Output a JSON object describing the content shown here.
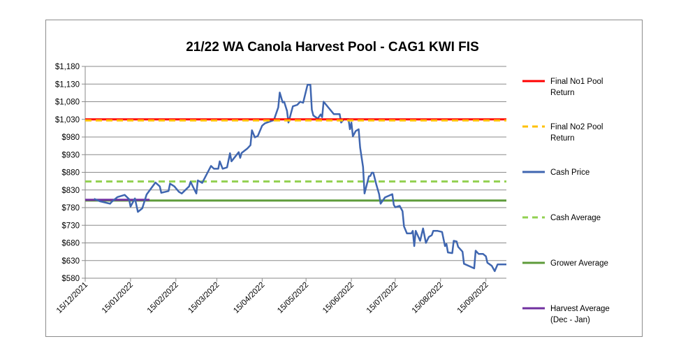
{
  "chart_data": {
    "type": "line",
    "title": "21/22 WA Canola Harvest Pool - CAG1 KWI FIS",
    "xlabel": "",
    "ylabel": "",
    "ylim": [
      580,
      1180
    ],
    "xlim": [
      "15/12/2021",
      "29/09/2022"
    ],
    "yticks": [
      "$580",
      "$630",
      "$680",
      "$730",
      "$780",
      "$830",
      "$880",
      "$930",
      "$980",
      "$1,030",
      "$1,080",
      "$1,130",
      "$1,180"
    ],
    "ytick_values": [
      580,
      630,
      680,
      730,
      780,
      830,
      880,
      930,
      980,
      1030,
      1080,
      1130,
      1180
    ],
    "xticks": [
      "15/12/2021",
      "15/01/2022",
      "15/02/2022",
      "15/03/2022",
      "15/04/2022",
      "15/05/2022",
      "15/06/2022",
      "15/07/2022",
      "15/08/2022",
      "15/09/2022"
    ],
    "grid": "horizontal",
    "legend_placement": "right",
    "series": [
      {
        "name": "Final No1 Pool Return",
        "color": "#FF0000",
        "style": "solid",
        "x": [
          "15/12/2021",
          "29/09/2022"
        ],
        "y": [
          1030,
          1030
        ]
      },
      {
        "name": "Final No2 Pool Return",
        "color": "#FFC000",
        "style": "dashed",
        "x": [
          "15/12/2021",
          "29/09/2022"
        ],
        "y": [
          1027,
          1027
        ]
      },
      {
        "name": "Cash Price",
        "color": "#3F66B0",
        "style": "solid",
        "x": [
          "21/12/2021",
          "25/12/2021",
          "01/01/2022",
          "02/01/2022",
          "06/01/2022",
          "11/01/2022",
          "14/01/2022",
          "15/01/2022",
          "18/01/2022",
          "20/01/2022",
          "23/01/2022",
          "26/01/2022",
          "01/02/2022",
          "04/02/2022",
          "05/02/2022",
          "10/02/2022",
          "11/02/2022",
          "14/02/2022",
          "17/02/2022",
          "19/02/2022",
          "24/02/2022",
          "25/02/2022",
          "01/03/2022",
          "02/03/2022",
          "05/03/2022",
          "11/03/2022",
          "13/03/2022",
          "16/03/2022",
          "17/03/2022",
          "19/03/2022",
          "22/03/2022",
          "24/03/2022",
          "25/03/2022",
          "30/03/2022",
          "31/03/2022",
          "01/04/2022",
          "05/04/2022",
          "07/04/2022",
          "08/04/2022",
          "10/04/2022",
          "12/04/2022",
          "15/04/2022",
          "17/04/2022",
          "23/04/2022",
          "26/04/2022",
          "27/04/2022",
          "29/04/2022",
          "30/04/2022",
          "02/05/2022",
          "03/05/2022",
          "06/05/2022",
          "09/05/2022",
          "11/05/2022",
          "13/05/2022",
          "16/05/2022",
          "18/05/2022",
          "19/05/2022",
          "20/05/2022",
          "23/05/2022",
          "25/05/2022",
          "26/05/2022",
          "27/05/2022",
          "03/06/2022",
          "07/06/2022",
          "08/06/2022",
          "10/06/2022",
          "13/06/2022",
          "14/06/2022",
          "15/06/2022",
          "16/06/2022",
          "18/06/2022",
          "20/06/2022",
          "21/06/2022",
          "23/06/2022",
          "24/06/2022",
          "27/06/2022",
          "28/06/2022",
          "29/06/2022",
          "30/06/2022",
          "02/07/2022",
          "04/07/2022",
          "05/07/2022",
          "08/07/2022",
          "13/07/2022",
          "14/07/2022",
          "15/07/2022",
          "18/07/2022",
          "20/07/2022",
          "21/07/2022",
          "23/07/2022",
          "26/07/2022",
          "27/07/2022",
          "28/07/2022",
          "29/07/2022",
          "01/08/2022",
          "03/08/2022",
          "05/08/2022",
          "07/08/2022",
          "09/08/2022",
          "10/08/2022",
          "13/08/2022",
          "16/08/2022",
          "18/08/2022",
          "19/08/2022",
          "20/08/2022",
          "23/08/2022",
          "24/08/2022",
          "26/08/2022",
          "27/08/2022",
          "30/08/2022",
          "31/08/2022",
          "07/09/2022",
          "08/09/2022",
          "10/09/2022",
          "13/09/2022",
          "15/09/2022",
          "16/09/2022",
          "19/09/2022",
          "21/09/2022",
          "23/09/2022",
          "29/09/2022"
        ],
        "y": [
          805,
          798,
          791,
          796,
          810,
          816,
          804,
          783,
          806,
          768,
          778,
          817,
          851,
          840,
          822,
          827,
          848,
          840,
          825,
          820,
          840,
          853,
          820,
          857,
          850,
          898,
          890,
          890,
          911,
          890,
          894,
          934,
          911,
          937,
          921,
          935,
          948,
          957,
          999,
          979,
          983,
          1012,
          1019,
          1028,
          1064,
          1106,
          1078,
          1080,
          1054,
          1021,
          1067,
          1071,
          1080,
          1077,
          1128,
          1128,
          1057,
          1041,
          1032,
          1044,
          1036,
          1080,
          1045,
          1045,
          1021,
          1031,
          1031,
          1002,
          1021,
          982,
          997,
          1002,
          950,
          895,
          820,
          869,
          870,
          879,
          879,
          846,
          818,
          791,
          809,
          818,
          788,
          781,
          785,
          770,
          727,
          707,
          707,
          714,
          671,
          714,
          686,
          721,
          680,
          697,
          702,
          714,
          714,
          711,
          671,
          677,
          653,
          651,
          686,
          684,
          669,
          655,
          621,
          608,
          658,
          649,
          649,
          642,
          624,
          615,
          600,
          619,
          619
        ]
      },
      {
        "name": "Cash Average",
        "color": "#92D050",
        "style": "dashed",
        "x": [
          "15/12/2021",
          "29/09/2022"
        ],
        "y": [
          854,
          854
        ]
      },
      {
        "name": "Grower Average",
        "color": "#5E9B3A",
        "style": "solid",
        "x": [
          "15/12/2021",
          "29/09/2022"
        ],
        "y": [
          800,
          800
        ]
      },
      {
        "name": "Harvest Average (Dec - Jan)",
        "color": "#7030A0",
        "style": "solid",
        "x": [
          "15/12/2021",
          "28/01/2022"
        ],
        "y": [
          802,
          802
        ]
      }
    ],
    "legend": [
      {
        "lines": [
          "Final No1 Pool",
          "Return"
        ],
        "color": "#FF0000",
        "style": "solid"
      },
      {
        "lines": [
          "Final No2 Pool",
          "Return"
        ],
        "color": "#FFC000",
        "style": "dashed"
      },
      {
        "lines": [
          "Cash Price"
        ],
        "color": "#3F66B0",
        "style": "solid"
      },
      {
        "lines": [
          "Cash Average"
        ],
        "color": "#92D050",
        "style": "dashed"
      },
      {
        "lines": [
          "Grower Average"
        ],
        "color": "#5E9B3A",
        "style": "solid"
      },
      {
        "lines": [
          "Harvest Average",
          "(Dec - Jan)"
        ],
        "color": "#7030A0",
        "style": "solid"
      }
    ]
  }
}
